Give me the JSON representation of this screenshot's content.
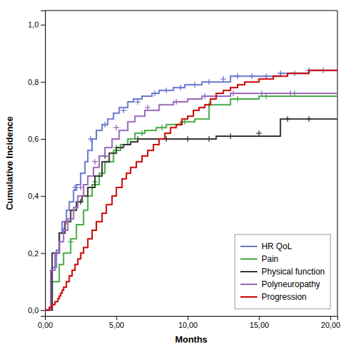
{
  "chart_data": {
    "type": "line",
    "xlabel": "Months",
    "ylabel": "Cumulative Incidence",
    "xlim": [
      0,
      20.5
    ],
    "ylim": [
      -0.02,
      1.05
    ],
    "xticks": [
      {
        "value": 0,
        "label": "0,00"
      },
      {
        "value": 5,
        "label": "5,00"
      },
      {
        "value": 10,
        "label": "10,00"
      },
      {
        "value": 15,
        "label": "15,00"
      },
      {
        "value": 20,
        "label": "20,00"
      }
    ],
    "yticks": [
      {
        "value": 0.0,
        "label": "0,0"
      },
      {
        "value": 0.2,
        "label": "0,2"
      },
      {
        "value": 0.4,
        "label": "0,4"
      },
      {
        "value": 0.6,
        "label": "0,6"
      },
      {
        "value": 0.8,
        "label": "0,8"
      },
      {
        "value": 1.0,
        "label": "1,0"
      }
    ],
    "grid": false,
    "legend": "bottom-right",
    "series": [
      {
        "name": "HR QoL",
        "color": "#6677cc",
        "line_style": "step",
        "marker": "+",
        "x": [
          0,
          0.5,
          0.8,
          1.0,
          1.2,
          1.5,
          1.7,
          2.0,
          2.2,
          2.5,
          2.8,
          3.0,
          3.3,
          3.6,
          4.0,
          4.4,
          4.8,
          5.2,
          5.8,
          6.2,
          6.8,
          7.5,
          8.0,
          9.0,
          9.8,
          11.0,
          13.0,
          16.5,
          18.5,
          20.5
        ],
        "values": [
          0,
          0.15,
          0.21,
          0.27,
          0.31,
          0.35,
          0.38,
          0.42,
          0.44,
          0.48,
          0.52,
          0.56,
          0.6,
          0.63,
          0.65,
          0.67,
          0.69,
          0.71,
          0.73,
          0.74,
          0.75,
          0.76,
          0.77,
          0.78,
          0.79,
          0.8,
          0.82,
          0.83,
          0.84,
          0.84
        ],
        "censor_x": [
          1.3,
          2.1,
          3.2,
          4.2,
          5.5,
          6.5,
          7.7,
          8.5,
          9.5,
          10.5,
          11.5,
          12.5,
          13.5,
          14.5,
          15.5,
          16.5,
          17.5,
          18.5,
          19.5
        ],
        "censor_y": [
          0.28,
          0.43,
          0.6,
          0.65,
          0.7,
          0.73,
          0.76,
          0.77,
          0.78,
          0.79,
          0.8,
          0.81,
          0.82,
          0.82,
          0.82,
          0.83,
          0.83,
          0.84,
          0.84
        ]
      },
      {
        "name": "Pain",
        "color": "#44aa44",
        "line_style": "step",
        "marker": "+",
        "x": [
          0,
          0.5,
          1.0,
          1.3,
          1.8,
          2.2,
          2.7,
          3.0,
          3.3,
          3.8,
          4.2,
          4.8,
          5.3,
          5.8,
          6.3,
          7.0,
          7.8,
          8.5,
          9.5,
          10.5,
          11.5,
          13.0,
          15.0,
          20.5
        ],
        "values": [
          0,
          0.1,
          0.16,
          0.2,
          0.25,
          0.3,
          0.35,
          0.4,
          0.44,
          0.48,
          0.52,
          0.56,
          0.58,
          0.6,
          0.62,
          0.63,
          0.64,
          0.65,
          0.66,
          0.67,
          0.72,
          0.74,
          0.75,
          0.76
        ],
        "censor_x": [
          1.8,
          3.5,
          5.0,
          6.8,
          8.2,
          9.8,
          11.5,
          13.5,
          15.5,
          17.5
        ],
        "censor_y": [
          0.24,
          0.45,
          0.57,
          0.62,
          0.64,
          0.66,
          0.72,
          0.74,
          0.75,
          0.76
        ]
      },
      {
        "name": "Physical function",
        "color": "#333333",
        "line_style": "step",
        "marker": "+",
        "x": [
          0,
          0.5,
          1.0,
          1.4,
          1.8,
          2.2,
          2.6,
          3.0,
          3.5,
          4.0,
          4.5,
          5.0,
          5.5,
          6.0,
          6.5,
          8.0,
          9.0,
          10.0,
          11.0,
          12.0,
          16.5,
          20.5
        ],
        "values": [
          0,
          0.2,
          0.27,
          0.31,
          0.35,
          0.38,
          0.4,
          0.43,
          0.47,
          0.52,
          0.55,
          0.57,
          0.58,
          0.59,
          0.6,
          0.6,
          0.6,
          0.6,
          0.6,
          0.61,
          0.67,
          0.67
        ],
        "censor_x": [
          2.5,
          4.2,
          6.5,
          8.5,
          10.0,
          11.5,
          13.0,
          15.0,
          17.0,
          18.5
        ],
        "censor_y": [
          0.38,
          0.54,
          0.6,
          0.6,
          0.6,
          0.6,
          0.61,
          0.62,
          0.67,
          0.67
        ]
      },
      {
        "name": "Polyneuropathy",
        "color": "#9966bb",
        "line_style": "step",
        "marker": "+",
        "x": [
          0,
          0.4,
          0.7,
          1.0,
          1.3,
          1.6,
          2.0,
          2.3,
          2.7,
          3.0,
          3.4,
          3.8,
          4.2,
          4.7,
          5.2,
          5.8,
          6.3,
          7.0,
          8.0,
          9.0,
          10.0,
          11.0,
          13.0,
          15.0,
          20.5
        ],
        "values": [
          0,
          0.14,
          0.2,
          0.24,
          0.28,
          0.32,
          0.36,
          0.4,
          0.44,
          0.47,
          0.5,
          0.54,
          0.57,
          0.6,
          0.63,
          0.66,
          0.68,
          0.7,
          0.72,
          0.73,
          0.74,
          0.75,
          0.76,
          0.76,
          0.76
        ],
        "censor_x": [
          1.5,
          2.5,
          3.5,
          5.0,
          7.2,
          9.2,
          11.2,
          13.2,
          15.2,
          17.2
        ],
        "censor_y": [
          0.31,
          0.43,
          0.52,
          0.64,
          0.71,
          0.73,
          0.75,
          0.76,
          0.76,
          0.76
        ]
      },
      {
        "name": "Progression",
        "color": "#cc0000",
        "line_style": "step",
        "x": [
          0,
          0.3,
          0.5,
          0.7,
          0.9,
          1.0,
          1.1,
          1.2,
          1.3,
          1.5,
          1.7,
          1.9,
          2.1,
          2.3,
          2.5,
          2.7,
          3.0,
          3.3,
          3.6,
          4.0,
          4.3,
          4.7,
          5.0,
          5.4,
          5.7,
          6.0,
          6.4,
          6.8,
          7.2,
          7.6,
          8.0,
          8.4,
          8.8,
          9.2,
          9.6,
          10.0,
          10.4,
          10.8,
          11.2,
          11.6,
          12.0,
          12.5,
          13.0,
          13.5,
          14.0,
          14.5,
          15.0,
          15.5,
          16.0,
          16.5,
          17.0,
          17.5,
          18.0,
          18.5,
          19.0,
          19.5,
          20.0,
          20.5
        ],
        "values": [
          0,
          0.01,
          0.02,
          0.03,
          0.04,
          0.05,
          0.06,
          0.07,
          0.08,
          0.1,
          0.12,
          0.14,
          0.16,
          0.18,
          0.2,
          0.22,
          0.25,
          0.28,
          0.31,
          0.34,
          0.37,
          0.4,
          0.43,
          0.46,
          0.48,
          0.5,
          0.52,
          0.54,
          0.56,
          0.58,
          0.6,
          0.62,
          0.64,
          0.65,
          0.67,
          0.68,
          0.7,
          0.71,
          0.72,
          0.74,
          0.76,
          0.77,
          0.78,
          0.79,
          0.8,
          0.8,
          0.81,
          0.81,
          0.82,
          0.82,
          0.83,
          0.83,
          0.83,
          0.84,
          0.84,
          0.84,
          0.84,
          0.84
        ]
      }
    ]
  }
}
